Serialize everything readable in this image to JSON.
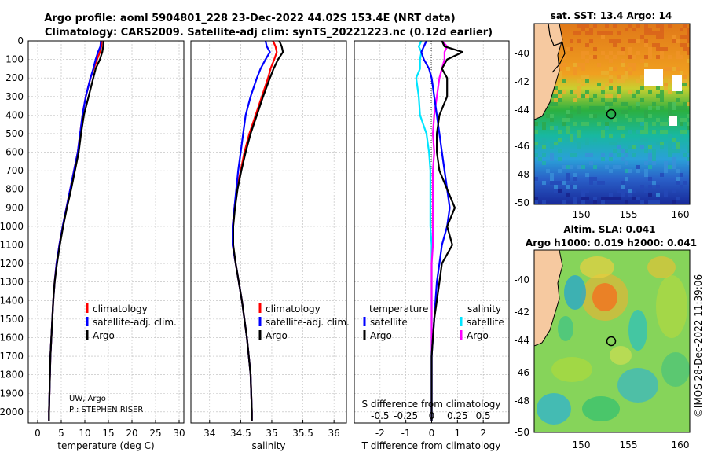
{
  "header": {
    "line1": "Argo profile: aoml 5904801_228 23-Dec-2022 44.02S 153.4E (NRT data)",
    "line2": "Climatology: CARS2009. Satellite-adj clim: synTS_20221223.nc (0.12d earlier)"
  },
  "colors": {
    "climatology": "#ff0000",
    "satellite_adj": "#0000ff",
    "argo": "#000000",
    "sal_satellite": "#00e5ff",
    "sal_argo": "#ff00ff",
    "grid": "#bbbbbb"
  },
  "depth_axis": {
    "ticks": [
      0,
      100,
      200,
      300,
      400,
      500,
      600,
      700,
      800,
      900,
      1000,
      1100,
      1200,
      1300,
      1400,
      1500,
      1600,
      1700,
      1800,
      1900,
      2000
    ],
    "ylim": [
      0,
      2060
    ]
  },
  "credit": {
    "line1": "UW, Argo",
    "line2": "PI: STEPHEN RISER"
  },
  "legend_profile": {
    "climatology": "climatology",
    "satellite": "satellite-adj. clim.",
    "argo": "Argo"
  },
  "legend_diff": {
    "temp_title": "temperature",
    "temp_sat": "satellite",
    "temp_argo": "Argo",
    "sal_title": "salinity",
    "sal_sat": "satellite",
    "sal_argo": "Argo"
  },
  "sst_map": {
    "title": "sat. SST: 13.4 Argo: 14",
    "yticks": [
      "-40",
      "-42",
      "-44",
      "-46",
      "-48",
      "-50"
    ],
    "xticks": [
      "150",
      "155",
      "160"
    ]
  },
  "sla_map": {
    "title1": "Altim. SLA: 0.041",
    "title2": "Argo h1000: 0.019 h2000: 0.041",
    "yticks": [
      "-40",
      "-42",
      "-44",
      "-46",
      "-48",
      "-50"
    ],
    "xticks": [
      "150",
      "155",
      "160"
    ]
  },
  "watermark": "©IMOS 28-Dec-2022 11:39:06",
  "chart_data": [
    {
      "type": "line",
      "id": "temperature",
      "xlabel": "temperature (deg C)",
      "xlim": [
        -2,
        31
      ],
      "xticks": [
        0,
        5,
        10,
        15,
        20,
        25,
        30
      ],
      "depth": [
        0,
        30,
        60,
        100,
        150,
        200,
        300,
        400,
        500,
        600,
        700,
        800,
        900,
        1000,
        1100,
        1200,
        1300,
        1400,
        1500,
        1600,
        1700,
        1800,
        1900,
        2000,
        2050
      ],
      "series": [
        {
          "name": "climatology",
          "values": [
            13.6,
            13.5,
            13.2,
            12.6,
            11.9,
            11.2,
            10.2,
            9.5,
            9.0,
            8.5,
            7.7,
            6.9,
            6.1,
            5.3,
            4.6,
            4.0,
            3.6,
            3.3,
            3.1,
            2.9,
            2.7,
            2.6,
            2.5,
            2.4,
            2.4
          ]
        },
        {
          "name": "satellite-adj. clim.",
          "values": [
            13.4,
            13.3,
            12.8,
            12.3,
            11.8,
            11.2,
            10.2,
            9.5,
            9.0,
            8.5,
            7.7,
            6.9,
            6.1,
            5.3,
            4.6,
            4.0,
            3.6,
            3.3,
            3.1,
            2.9,
            2.7,
            2.6,
            2.5,
            2.4,
            2.4
          ]
        },
        {
          "name": "Argo",
          "values": [
            14.0,
            13.9,
            13.7,
            13.2,
            12.3,
            11.8,
            10.8,
            9.8,
            9.2,
            8.7,
            7.9,
            7.1,
            6.2,
            5.4,
            4.7,
            4.1,
            3.6,
            3.3,
            3.1,
            2.9,
            2.7,
            2.6,
            2.5,
            2.4,
            2.4
          ]
        }
      ]
    },
    {
      "type": "line",
      "id": "salinity",
      "xlabel": "salinity",
      "xlim": [
        33.7,
        36.2
      ],
      "xticks": [
        34,
        34.5,
        35,
        35.5,
        36
      ],
      "tick_labels": [
        "34",
        "34.5",
        "35",
        "35.5",
        "36"
      ],
      "depth": [
        0,
        30,
        60,
        100,
        150,
        200,
        300,
        400,
        500,
        600,
        700,
        800,
        900,
        1000,
        1100,
        1200,
        1300,
        1400,
        1500,
        1600,
        1700,
        1800,
        1900,
        2000,
        2050
      ],
      "series": [
        {
          "name": "climatology",
          "values": [
            35.02,
            35.06,
            35.08,
            35.04,
            34.98,
            34.94,
            34.84,
            34.74,
            34.64,
            34.56,
            34.5,
            34.44,
            34.4,
            34.37,
            34.37,
            34.42,
            34.47,
            34.52,
            34.56,
            34.6,
            34.63,
            34.66,
            34.67,
            34.68,
            34.68
          ]
        },
        {
          "name": "satellite-adj. clim.",
          "values": [
            34.9,
            34.92,
            34.97,
            34.9,
            34.82,
            34.76,
            34.66,
            34.58,
            34.54,
            34.5,
            34.46,
            34.43,
            34.4,
            34.37,
            34.37,
            34.42,
            34.47,
            34.52,
            34.56,
            34.6,
            34.63,
            34.66,
            34.67,
            34.68,
            34.68
          ]
        },
        {
          "name": "Argo",
          "values": [
            35.12,
            35.16,
            35.18,
            35.1,
            35.03,
            34.97,
            34.86,
            34.76,
            34.66,
            34.58,
            34.51,
            34.45,
            34.41,
            34.38,
            34.38,
            34.42,
            34.47,
            34.52,
            34.56,
            34.6,
            34.63,
            34.66,
            34.67,
            34.68,
            34.68
          ]
        }
      ]
    },
    {
      "type": "line",
      "id": "differences",
      "xlabel": "T difference from climatology",
      "xlabel_top": "S difference from climatology",
      "xlim": [
        -3,
        3
      ],
      "xticks": [
        -2,
        -1,
        0,
        1,
        2
      ],
      "xticks_top": [
        -2,
        -1,
        0,
        1,
        2
      ],
      "tick_labels_top": [
        "-0.5",
        "-0.25",
        "0",
        "0.25",
        "0.5"
      ],
      "depth": [
        0,
        30,
        60,
        100,
        150,
        200,
        300,
        400,
        500,
        600,
        700,
        800,
        900,
        1000,
        1100,
        1200,
        1300,
        1400,
        1500,
        1600,
        1700,
        1800,
        1900,
        2000,
        2050
      ],
      "series": [
        {
          "name": "temperature satellite",
          "values": [
            -0.2,
            -0.3,
            -0.4,
            -0.3,
            -0.1,
            0.0,
            0.1,
            0.2,
            0.3,
            0.4,
            0.5,
            0.6,
            0.7,
            0.6,
            0.4,
            0.3,
            0.2,
            0.15,
            0.1,
            0.05,
            0.0,
            0.0,
            0.0,
            0.0,
            0.0
          ]
        },
        {
          "name": "temperature Argo",
          "values": [
            0.4,
            0.5,
            1.2,
            0.6,
            0.4,
            0.6,
            0.6,
            0.3,
            0.2,
            0.2,
            0.3,
            0.6,
            0.9,
            0.6,
            0.8,
            0.4,
            0.3,
            0.2,
            0.1,
            0.05,
            0.0,
            0.0,
            0.0,
            0.0,
            0.0
          ]
        },
        {
          "name": "salinity satellite",
          "values": [
            -0.4,
            -0.5,
            -0.4,
            -0.45,
            -0.45,
            -0.6,
            -0.5,
            -0.45,
            -0.2,
            -0.1,
            -0.05,
            -0.05,
            -0.05,
            -0.05,
            0.0,
            0.0,
            0.0,
            0.0,
            0.0,
            0.0,
            0.0,
            0.0,
            0.0,
            0.0,
            0.0
          ]
        },
        {
          "name": "salinity Argo",
          "values": [
            0.4,
            0.6,
            0.5,
            0.5,
            0.4,
            0.3,
            0.2,
            0.1,
            0.05,
            0.1,
            0.05,
            0.05,
            0.05,
            0.05,
            0.05,
            0.0,
            0.0,
            0.0,
            0.0,
            0.0,
            0.0,
            0.0,
            0.0,
            0.0,
            0.0
          ]
        }
      ]
    }
  ]
}
